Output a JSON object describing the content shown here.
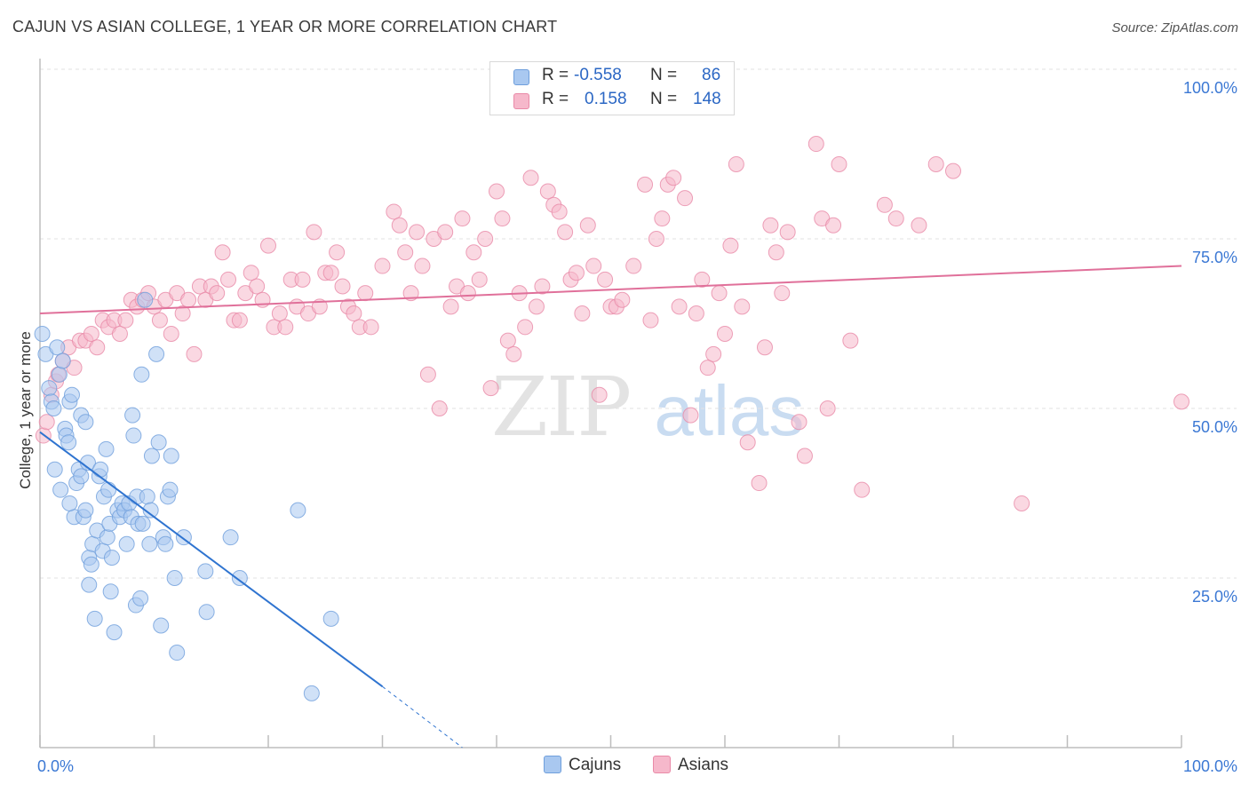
{
  "title": "CAJUN VS ASIAN COLLEGE, 1 YEAR OR MORE CORRELATION CHART",
  "source": "Source: ZipAtlas.com",
  "watermark": {
    "zip": "ZIP",
    "atlas": "atlas"
  },
  "legend": {
    "rows": [
      {
        "r_label": "R =",
        "r_value": "-0.558",
        "n_label": "N =",
        "n_value": "86",
        "color": "#a9c8f0"
      },
      {
        "r_label": "R =",
        "r_value": "0.158",
        "n_label": "N =",
        "n_value": "148",
        "color": "#f6b8cb"
      }
    ]
  },
  "bottom_legend": {
    "cajuns": "Cajuns",
    "asians": "Asians"
  },
  "chart_data": {
    "type": "scatter",
    "title": "CAJUN VS ASIAN COLLEGE, 1 YEAR OR MORE CORRELATION CHART",
    "xlabel": "",
    "ylabel": "College, 1 year or more",
    "xlim": [
      0,
      100
    ],
    "ylim": [
      0,
      100
    ],
    "x_tick_labels": {
      "left": "0.0%",
      "right": "100.0%"
    },
    "y_ticks": [
      {
        "value": 100,
        "label": "100.0%"
      },
      {
        "value": 75,
        "label": "75.0%"
      },
      {
        "value": 50,
        "label": "50.0%"
      },
      {
        "value": 25,
        "label": "25.0%"
      }
    ],
    "colors": {
      "cajuns_fill": "#a9c8f0",
      "cajuns_stroke": "#6f9fdc",
      "cajuns_line": "#2f74d0",
      "asians_fill": "#f6b8cb",
      "asians_stroke": "#e98aa8",
      "asians_line": "#e0709a",
      "tick_label": "#3b78d4"
    },
    "series": [
      {
        "name": "Cajuns",
        "trend": {
          "x0": 0,
          "y0": 46.5,
          "x1": 30,
          "y1": 9.0,
          "dash_x1": 37,
          "dash_y1": 0
        },
        "points": [
          [
            0.2,
            61
          ],
          [
            0.5,
            58
          ],
          [
            0.8,
            53
          ],
          [
            1.0,
            51
          ],
          [
            1.2,
            50
          ],
          [
            1.5,
            59
          ],
          [
            1.7,
            55
          ],
          [
            2.0,
            57
          ],
          [
            2.2,
            47
          ],
          [
            2.3,
            46
          ],
          [
            1.3,
            41
          ],
          [
            1.8,
            38
          ],
          [
            2.5,
            45
          ],
          [
            2.6,
            51
          ],
          [
            2.8,
            52
          ],
          [
            3.0,
            34
          ],
          [
            2.6,
            36
          ],
          [
            3.2,
            39
          ],
          [
            3.4,
            41
          ],
          [
            3.6,
            40
          ],
          [
            3.6,
            49
          ],
          [
            3.8,
            34
          ],
          [
            4.0,
            35
          ],
          [
            4.0,
            48
          ],
          [
            4.2,
            42
          ],
          [
            4.3,
            28
          ],
          [
            4.3,
            24
          ],
          [
            4.5,
            27
          ],
          [
            4.6,
            30
          ],
          [
            4.8,
            19
          ],
          [
            5.0,
            32
          ],
          [
            5.2,
            40
          ],
          [
            5.3,
            41
          ],
          [
            5.5,
            29
          ],
          [
            5.6,
            37
          ],
          [
            5.8,
            44
          ],
          [
            5.9,
            31
          ],
          [
            6.0,
            38
          ],
          [
            6.1,
            33
          ],
          [
            6.2,
            23
          ],
          [
            6.3,
            28
          ],
          [
            6.5,
            17
          ],
          [
            6.8,
            35
          ],
          [
            7.0,
            34
          ],
          [
            7.2,
            36
          ],
          [
            7.4,
            35
          ],
          [
            7.6,
            30
          ],
          [
            7.8,
            36
          ],
          [
            8.0,
            34
          ],
          [
            8.1,
            49
          ],
          [
            8.2,
            46
          ],
          [
            8.4,
            21
          ],
          [
            8.5,
            37
          ],
          [
            8.6,
            33
          ],
          [
            8.8,
            22
          ],
          [
            8.9,
            55
          ],
          [
            9.0,
            33
          ],
          [
            9.2,
            66
          ],
          [
            9.4,
            37
          ],
          [
            9.6,
            30
          ],
          [
            9.7,
            35
          ],
          [
            9.8,
            43
          ],
          [
            10.2,
            58
          ],
          [
            10.4,
            45
          ],
          [
            10.6,
            18
          ],
          [
            10.8,
            31
          ],
          [
            11.0,
            30
          ],
          [
            11.2,
            37
          ],
          [
            11.4,
            38
          ],
          [
            11.5,
            43
          ],
          [
            11.8,
            25
          ],
          [
            12.0,
            14
          ],
          [
            12.6,
            31
          ],
          [
            14.5,
            26
          ],
          [
            14.6,
            20
          ],
          [
            16.7,
            31
          ],
          [
            17.5,
            25
          ],
          [
            22.6,
            35
          ],
          [
            25.5,
            19
          ],
          [
            23.8,
            8
          ]
        ]
      },
      {
        "name": "Asians",
        "trend": {
          "x0": 0,
          "y0": 64.0,
          "x1": 100,
          "y1": 71.0
        },
        "points": [
          [
            0.3,
            46
          ],
          [
            0.6,
            48
          ],
          [
            1.0,
            52
          ],
          [
            1.4,
            54
          ],
          [
            1.6,
            55
          ],
          [
            2.0,
            57
          ],
          [
            2.5,
            59
          ],
          [
            3.0,
            56
          ],
          [
            3.5,
            60
          ],
          [
            4.0,
            60
          ],
          [
            4.5,
            61
          ],
          [
            5.0,
            59
          ],
          [
            5.5,
            63
          ],
          [
            6.0,
            62
          ],
          [
            6.5,
            63
          ],
          [
            7.0,
            61
          ],
          [
            7.5,
            63
          ],
          [
            8.0,
            66
          ],
          [
            8.5,
            65
          ],
          [
            9.0,
            66
          ],
          [
            9.5,
            67
          ],
          [
            10.0,
            65
          ],
          [
            10.5,
            63
          ],
          [
            11.0,
            66
          ],
          [
            11.5,
            61
          ],
          [
            12.0,
            67
          ],
          [
            12.5,
            64
          ],
          [
            13.0,
            66
          ],
          [
            13.5,
            58
          ],
          [
            14.0,
            68
          ],
          [
            14.5,
            66
          ],
          [
            15.0,
            68
          ],
          [
            15.5,
            67
          ],
          [
            16.0,
            73
          ],
          [
            16.5,
            69
          ],
          [
            17.0,
            63
          ],
          [
            17.5,
            63
          ],
          [
            18.0,
            67
          ],
          [
            18.5,
            70
          ],
          [
            19.0,
            68
          ],
          [
            19.5,
            66
          ],
          [
            20.0,
            74
          ],
          [
            20.5,
            62
          ],
          [
            21.0,
            64
          ],
          [
            21.5,
            62
          ],
          [
            22.0,
            69
          ],
          [
            22.5,
            65
          ],
          [
            23.0,
            69
          ],
          [
            23.5,
            64
          ],
          [
            24.0,
            76
          ],
          [
            24.5,
            65
          ],
          [
            25.0,
            70
          ],
          [
            25.5,
            70
          ],
          [
            26.0,
            73
          ],
          [
            26.5,
            68
          ],
          [
            27.0,
            65
          ],
          [
            27.5,
            64
          ],
          [
            28.0,
            62
          ],
          [
            28.5,
            67
          ],
          [
            29.0,
            62
          ],
          [
            30.0,
            71
          ],
          [
            31.0,
            79
          ],
          [
            31.5,
            77
          ],
          [
            32.0,
            73
          ],
          [
            32.5,
            67
          ],
          [
            33.0,
            76
          ],
          [
            33.5,
            71
          ],
          [
            34.0,
            55
          ],
          [
            34.5,
            75
          ],
          [
            35.0,
            50
          ],
          [
            35.5,
            76
          ],
          [
            36.0,
            65
          ],
          [
            36.5,
            68
          ],
          [
            37.0,
            78
          ],
          [
            37.5,
            67
          ],
          [
            38.0,
            73
          ],
          [
            38.5,
            69
          ],
          [
            39.0,
            75
          ],
          [
            39.5,
            53
          ],
          [
            40.0,
            82
          ],
          [
            40.5,
            78
          ],
          [
            41.0,
            60
          ],
          [
            41.5,
            58
          ],
          [
            42.0,
            67
          ],
          [
            42.5,
            62
          ],
          [
            43.0,
            84
          ],
          [
            43.5,
            65
          ],
          [
            44.0,
            68
          ],
          [
            44.5,
            82
          ],
          [
            45.0,
            80
          ],
          [
            45.5,
            79
          ],
          [
            46.0,
            76
          ],
          [
            46.5,
            69
          ],
          [
            47.0,
            70
          ],
          [
            47.5,
            64
          ],
          [
            48.0,
            77
          ],
          [
            48.5,
            71
          ],
          [
            49.0,
            52
          ],
          [
            49.5,
            69
          ],
          [
            50.0,
            65
          ],
          [
            50.5,
            65
          ],
          [
            51.0,
            66
          ],
          [
            52.0,
            71
          ],
          [
            53.0,
            83
          ],
          [
            53.5,
            63
          ],
          [
            54.0,
            75
          ],
          [
            54.5,
            78
          ],
          [
            55.0,
            83
          ],
          [
            55.5,
            84
          ],
          [
            56.0,
            65
          ],
          [
            56.5,
            81
          ],
          [
            57.0,
            49
          ],
          [
            57.5,
            64
          ],
          [
            58.0,
            69
          ],
          [
            58.5,
            56
          ],
          [
            59.0,
            58
          ],
          [
            59.5,
            67
          ],
          [
            60.0,
            61
          ],
          [
            60.5,
            74
          ],
          [
            61.0,
            86
          ],
          [
            61.5,
            65
          ],
          [
            62.0,
            45
          ],
          [
            63.0,
            39
          ],
          [
            63.5,
            59
          ],
          [
            64.0,
            77
          ],
          [
            64.5,
            73
          ],
          [
            65.0,
            67
          ],
          [
            65.5,
            76
          ],
          [
            66.5,
            48
          ],
          [
            67.0,
            43
          ],
          [
            68.0,
            89
          ],
          [
            68.5,
            78
          ],
          [
            69.0,
            50
          ],
          [
            69.5,
            77
          ],
          [
            70.0,
            86
          ],
          [
            71.0,
            60
          ],
          [
            72.0,
            38
          ],
          [
            74.0,
            80
          ],
          [
            75.0,
            78
          ],
          [
            77.0,
            77
          ],
          [
            78.5,
            86
          ],
          [
            80.0,
            85
          ],
          [
            86.0,
            36
          ],
          [
            100.0,
            51
          ]
        ]
      }
    ]
  }
}
